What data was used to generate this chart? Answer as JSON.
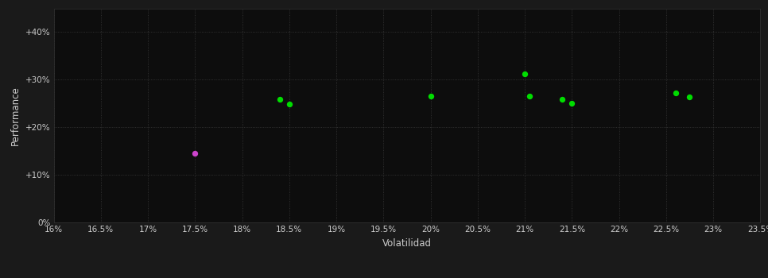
{
  "background_color": "#1a1a1a",
  "plot_bg_color": "#0d0d0d",
  "grid_color": "#3a3a3a",
  "xlabel": "Volatilidad",
  "ylabel": "Performance",
  "xlim": [
    0.16,
    0.235
  ],
  "ylim": [
    0.0,
    0.45
  ],
  "xticks": [
    0.16,
    0.165,
    0.17,
    0.175,
    0.18,
    0.185,
    0.19,
    0.195,
    0.2,
    0.205,
    0.21,
    0.215,
    0.22,
    0.225,
    0.23,
    0.235
  ],
  "xtick_labels": [
    "16%",
    "16.5%",
    "17%",
    "17.5%",
    "18%",
    "18.5%",
    "19%",
    "19.5%",
    "20%",
    "20.5%",
    "21%",
    "21.5%",
    "22%",
    "22.5%",
    "23%",
    "23.5%"
  ],
  "yticks": [
    0.0,
    0.1,
    0.2,
    0.3,
    0.4
  ],
  "ytick_labels": [
    "0%",
    "+10%",
    "+20%",
    "+30%",
    "+40%"
  ],
  "green_points": [
    [
      0.184,
      0.258
    ],
    [
      0.185,
      0.248
    ],
    [
      0.2,
      0.265
    ],
    [
      0.21,
      0.313
    ],
    [
      0.2105,
      0.265
    ],
    [
      0.214,
      0.258
    ],
    [
      0.215,
      0.25
    ],
    [
      0.226,
      0.272
    ],
    [
      0.2275,
      0.263
    ]
  ],
  "magenta_points": [
    [
      0.175,
      0.145
    ]
  ],
  "green_color": "#00dd00",
  "magenta_color": "#cc44cc",
  "marker_size": 28,
  "tick_color": "#cccccc",
  "tick_fontsize": 7.5,
  "label_fontsize": 8.5,
  "label_color": "#cccccc"
}
